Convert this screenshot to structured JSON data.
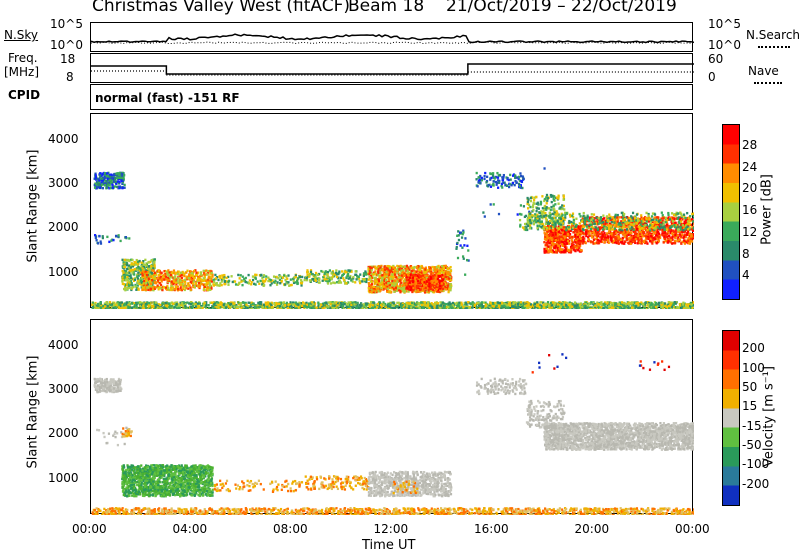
{
  "header": {
    "title": "Christmas Valley West (fitACF)",
    "beam": "Beam 18",
    "date_range": "21/Oct/2019 – 22/Oct/2019"
  },
  "noise_panel": {
    "left_label": "N.Sky",
    "right_label": "N.Search",
    "left_top": "10^5",
    "left_bottom": "10^0",
    "right_top": "10^5",
    "right_bottom": "10^0"
  },
  "freq_panel": {
    "left_label_1": "Freq.",
    "left_label_2": "[MHz]",
    "right_label": "Nave",
    "left_top": "18",
    "left_bottom": "8",
    "right_top": "60",
    "right_bottom": "0",
    "cpid_label": "CPID",
    "mode_text": "normal (fast) -151 RF"
  },
  "chart_data": [
    {
      "type": "heatmap",
      "name": "power",
      "ylabel": "Slant Range [km]",
      "xlabel": "",
      "x_ticks": [
        "00:00",
        "04:00",
        "08:00",
        "12:00",
        "16:00",
        "20:00",
        "00:00"
      ],
      "x_range_hours": [
        0,
        24
      ],
      "y_ticks": [
        1000,
        2000,
        3000,
        4000
      ],
      "y_range_km": [
        200,
        4600
      ],
      "colorbar": {
        "label": "Power [dB]",
        "ticks": [
          "4",
          "8",
          "12",
          "16",
          "20",
          "24",
          "28"
        ],
        "colors": [
          "#1020ff",
          "#2050c0",
          "#2a8a6a",
          "#3aaa5a",
          "#a8d040",
          "#f0c000",
          "#ff8c00",
          "#ff3000",
          "#ff0000"
        ]
      }
    },
    {
      "type": "heatmap",
      "name": "velocity",
      "ylabel": "Slant Range [km]",
      "xlabel": "Time UT",
      "x_ticks": [
        "00:00",
        "04:00",
        "08:00",
        "12:00",
        "16:00",
        "20:00",
        "00:00"
      ],
      "x_range_hours": [
        0,
        24
      ],
      "y_ticks": [
        1000,
        2000,
        3000,
        4000
      ],
      "y_range_km": [
        200,
        4600
      ],
      "colorbar": {
        "label": "Velocity [m s⁻¹]",
        "ticks": [
          "200",
          "100",
          "50",
          "15",
          "-15",
          "-50",
          "-100",
          "-200"
        ],
        "colors": [
          "#1030c0",
          "#2a7a9a",
          "#2a9a5a",
          "#60c040",
          "#c8c8c0",
          "#f0b000",
          "#ff7000",
          "#ff3000",
          "#e00000"
        ]
      }
    }
  ]
}
